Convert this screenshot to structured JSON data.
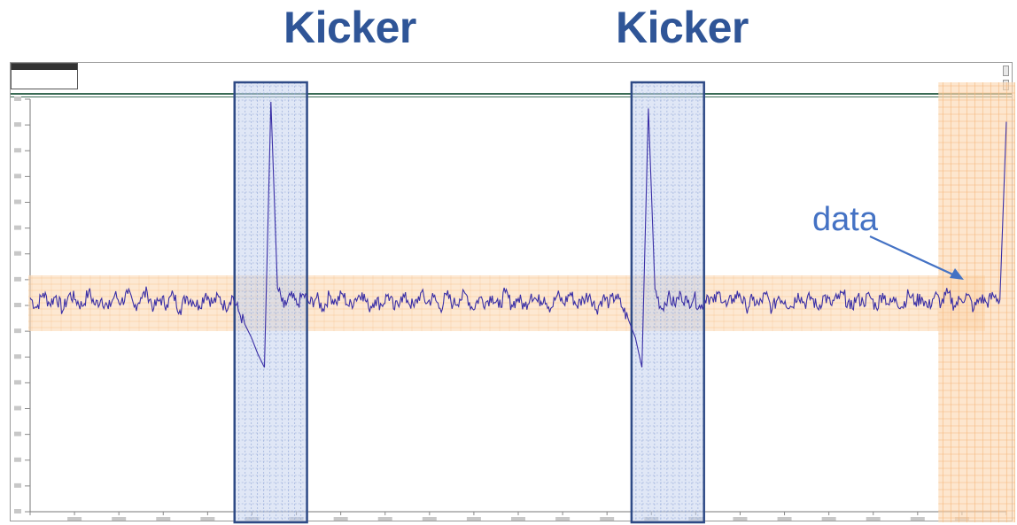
{
  "annotations": {
    "kicker_1": "Kicker",
    "kicker_2": "Kicker",
    "data": "data"
  },
  "colors": {
    "signal": "#3a2fa6",
    "kicker_box": "#2e4a86",
    "kicker_fill": "#c7d4ee",
    "highlight_band": "#fcd9b4",
    "annotation_text": "#2f5597",
    "arrow": "#4472c4"
  },
  "window": {
    "scroll_up_icon": "up-arrow-icon",
    "scroll_down_icon": "down-arrow-icon"
  },
  "chart_data": {
    "type": "line",
    "title": "",
    "xlabel": "",
    "ylabel": "",
    "grid": false,
    "series": [
      {
        "values": [
          0.05,
          -0.1,
          0.12,
          -0.04,
          0.08,
          -0.15,
          0.1,
          0.02,
          -0.08,
          0.14,
          -0.06,
          0.04,
          -0.12,
          0.09,
          -0.02,
          0.11,
          -0.09,
          0.05,
          0.13,
          -0.11,
          0.03,
          -0.05,
          0.1,
          -0.14,
          0.07,
          0.0,
          -0.07,
          0.12,
          -0.03,
          0.06,
          -0.1,
          0.08,
          -0.15,
          -0.35,
          -0.55,
          -0.8,
          -1.0,
          3.0,
          0.2,
          -0.1,
          0.08,
          -0.06,
          0.1,
          -0.04,
          0.05,
          -0.12,
          0.09,
          -0.02,
          0.11,
          -0.08,
          0.04,
          0.13,
          -0.1,
          0.02,
          -0.06,
          0.1,
          -0.13,
          0.07,
          0.01,
          -0.09,
          0.12,
          -0.03,
          0.06,
          -0.11,
          0.09,
          -0.05,
          0.03,
          0.1,
          -0.12,
          0.05,
          -0.02,
          0.08,
          -0.1,
          0.13,
          -0.06,
          0.04,
          -0.09,
          0.11,
          -0.01,
          0.06,
          -0.11,
          0.09,
          -0.04,
          0.12,
          -0.07,
          0.03,
          0.1,
          -0.13,
          0.05,
          -0.03,
          0.08,
          -0.1,
          -0.3,
          -0.55,
          -1.0,
          2.9,
          0.18,
          -0.12,
          0.07,
          -0.05,
          0.1,
          -0.03,
          0.06,
          -0.11,
          0.09,
          -0.02,
          0.12,
          -0.08,
          0.04,
          0.11,
          -0.1,
          0.02,
          -0.06,
          0.1,
          -0.13,
          0.07,
          0.0,
          -0.09,
          0.12,
          -0.04,
          0.06,
          -0.11,
          0.08,
          -0.05,
          0.03,
          0.1,
          -0.12,
          0.05,
          -0.02,
          0.08,
          -0.1,
          0.12,
          -0.06,
          0.04,
          -0.09,
          0.11,
          -0.02,
          0.06,
          -0.1,
          0.09,
          -0.04,
          0.12,
          -0.07,
          0.03,
          0.09,
          -0.12,
          0.05,
          -0.03,
          0.08,
          0.02,
          2.7
        ]
      }
    ],
    "ylim": [
      -3.2,
      3.2
    ],
    "kicker_regions": [
      [
        31,
        42
      ],
      [
        92,
        103
      ]
    ],
    "data_region": [
      145,
      148
    ]
  }
}
